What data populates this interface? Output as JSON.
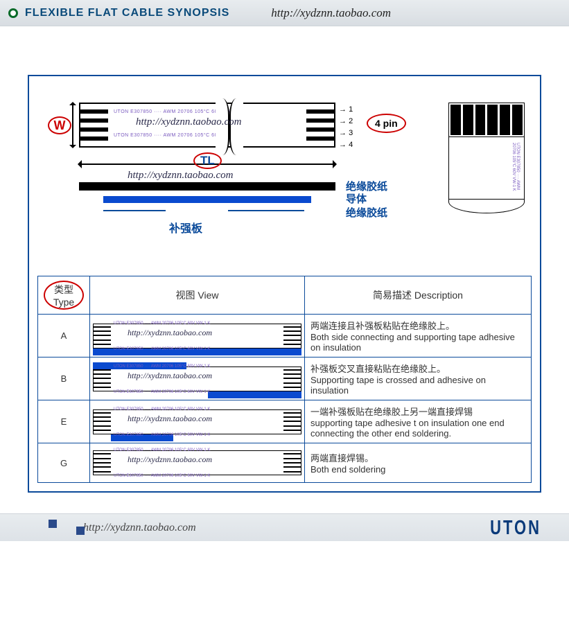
{
  "header": {
    "title": "FLEXIBLE FLAT CABLE SYNOPSIS",
    "url": "http://xydznn.taobao.com"
  },
  "colors": {
    "frame": "#0a4a9a",
    "accent_red": "#c00000",
    "conductor": "#000000",
    "stiffener": "#0a4acf",
    "header_text": "#0a4a7a",
    "print_ink": "#7a5abf"
  },
  "top_diagram": {
    "width_label": "W",
    "length_label": "TL",
    "pin_count_label": "4 pin",
    "pins": [
      "1",
      "2",
      "3",
      "4"
    ],
    "overlay_url": "http://xydznn.taobao.com",
    "print_line1": "UTON E307850 ···· AWM 20706   105°C 60V VW-1 K",
    "print_line2": "UTON E307850 ···· AWM 20706   105°C 60V VW-1 K",
    "layers": {
      "insulation": "绝缘胶纸",
      "conductor": "导体",
      "insulation2": "绝缘胶纸"
    },
    "stiffener_label": "补强板"
  },
  "table": {
    "headers": {
      "type": "类型 Type",
      "view": "视图 View",
      "desc": "简易描述 Description"
    },
    "rows": [
      {
        "type": "A",
        "desc_cn": "两端连接且补强板粘贴在绝缘胶上。",
        "desc_en": "Both side connecting and supporting tape adhesive on insulation",
        "view_style": "A"
      },
      {
        "type": "B",
        "desc_cn": "补强板交叉直接粘贴在绝缘胶上。",
        "desc_en": "Supporting tape is crossed and adhesive on insulation",
        "view_style": "B"
      },
      {
        "type": "E",
        "desc_cn": "一端补强板贴在绝缘胶上另一端直接焊锡",
        "desc_en": "supporting tape adhesive t on insulation one end connecting the other end soldering.",
        "view_style": "E"
      },
      {
        "type": "G",
        "desc_cn": "两端直接焊锡。",
        "desc_en": "Both end soldering",
        "view_style": "G"
      }
    ],
    "overlay_url": "http://xydznn.taobao.com"
  },
  "footer": {
    "url": "http://xydznn.taobao.com",
    "logo": "UTON"
  }
}
